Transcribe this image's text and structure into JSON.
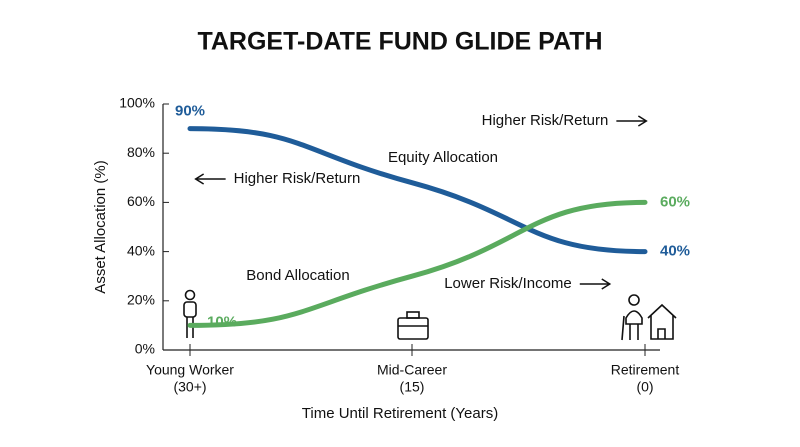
{
  "chart_data": {
    "type": "line",
    "title": "TARGET-DATE FUND GLIDE PATH",
    "x_label": "Time Until Retirement (Years)",
    "y_label": "Asset Allocation (%)",
    "categories": [
      [
        "Young Worker",
        "(30+)"
      ],
      [
        "Mid-Career",
        "(15)"
      ],
      [
        "Retirement",
        "(0)"
      ]
    ],
    "series": [
      {
        "name": "Equity Allocation",
        "color": "#1f5c99",
        "values": [
          90,
          68,
          40
        ],
        "value_labels": [
          "90%",
          null,
          "40%"
        ]
      },
      {
        "name": "Bond Allocation",
        "color": "#5aab5e",
        "values": [
          10,
          30,
          60
        ],
        "value_labels": [
          "10%",
          null,
          "60%"
        ]
      }
    ],
    "ylim": [
      0,
      100
    ],
    "yticks": [
      {
        "value": 0,
        "label": "0%"
      },
      {
        "value": 20,
        "label": "20%"
      },
      {
        "value": 40,
        "label": "40%"
      },
      {
        "value": 60,
        "label": "60%"
      },
      {
        "value": 80,
        "label": "80%"
      },
      {
        "value": 100,
        "label": "100%"
      }
    ],
    "annotations": [
      "Higher Risk/Return",
      "Higher Risk/Return",
      "Lower Risk/Income"
    ]
  }
}
